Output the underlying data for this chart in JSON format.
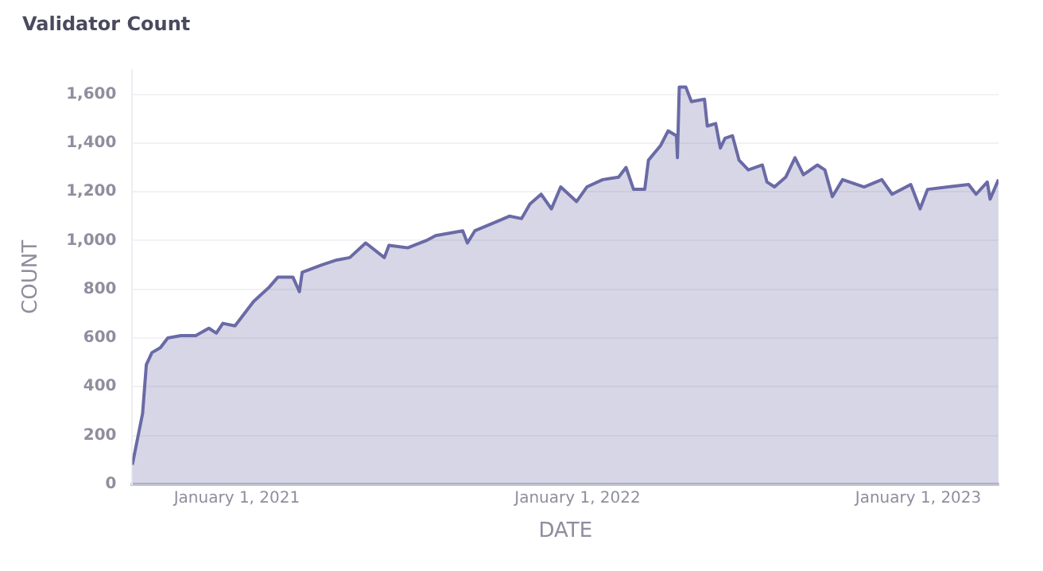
{
  "chart_data": {
    "type": "area",
    "title": "Validator Count",
    "xlabel": "DATE",
    "ylabel": "COUNT",
    "x": [
      "2020-09-11",
      "2020-09-22",
      "2020-09-26",
      "2020-10-02",
      "2020-10-11",
      "2020-10-19",
      "2020-11-02",
      "2020-11-18",
      "2020-12-02",
      "2020-12-10",
      "2020-12-17",
      "2020-12-30",
      "2021-01-19",
      "2021-02-05",
      "2021-02-14",
      "2021-03-02",
      "2021-03-09",
      "2021-03-12",
      "2021-04-02",
      "2021-04-18",
      "2021-05-02",
      "2021-05-19",
      "2021-06-08",
      "2021-06-13",
      "2021-07-03",
      "2021-07-23",
      "2021-08-02",
      "2021-08-31",
      "2021-09-05",
      "2021-09-13",
      "2021-10-08",
      "2021-10-20",
      "2021-11-02",
      "2021-11-11",
      "2021-11-23",
      "2021-12-04",
      "2021-12-14",
      "2021-12-31",
      "2022-01-11",
      "2022-01-28",
      "2022-02-14",
      "2022-02-22",
      "2022-03-02",
      "2022-03-14",
      "2022-03-18",
      "2022-03-31",
      "2022-04-08",
      "2022-04-17",
      "2022-04-18",
      "2022-04-20",
      "2022-04-27",
      "2022-05-03",
      "2022-05-17",
      "2022-05-20",
      "2022-05-29",
      "2022-06-03",
      "2022-06-08",
      "2022-06-16",
      "2022-06-23",
      "2022-07-03",
      "2022-07-18",
      "2022-07-23",
      "2022-07-31",
      "2022-08-12",
      "2022-08-22",
      "2022-08-31",
      "2022-09-15",
      "2022-09-23",
      "2022-10-01",
      "2022-10-12",
      "2022-11-04",
      "2022-11-23",
      "2022-12-04",
      "2022-12-24",
      "2023-01-03",
      "2023-01-11",
      "2023-02-02",
      "2023-02-24",
      "2023-03-04",
      "2023-03-16",
      "2023-03-19",
      "2023-03-28"
    ],
    "series": [
      {
        "color": "#6a6aa6",
        "values": [
          80,
          290,
          490,
          540,
          560,
          600,
          610,
          610,
          640,
          620,
          660,
          650,
          750,
          810,
          850,
          850,
          790,
          870,
          900,
          920,
          930,
          990,
          930,
          980,
          970,
          1000,
          1020,
          1040,
          990,
          1040,
          1080,
          1100,
          1090,
          1150,
          1190,
          1130,
          1220,
          1160,
          1220,
          1250,
          1260,
          1300,
          1210,
          1210,
          1330,
          1390,
          1450,
          1430,
          1340,
          1630,
          1630,
          1570,
          1580,
          1470,
          1480,
          1380,
          1420,
          1430,
          1330,
          1290,
          1310,
          1240,
          1220,
          1260,
          1340,
          1270,
          1310,
          1290,
          1180,
          1250,
          1220,
          1250,
          1190,
          1230,
          1130,
          1210,
          1220,
          1230,
          1190,
          1240,
          1170,
          1250
        ]
      }
    ],
    "xlim": [
      "2020-09-11",
      "2023-03-28"
    ],
    "xticks": [
      {
        "value": "2021-01-01",
        "label": "January 1, 2021"
      },
      {
        "value": "2022-01-01",
        "label": "January 1, 2022"
      },
      {
        "value": "2023-01-01",
        "label": "January 1, 2023"
      }
    ],
    "ylim": [
      0,
      1700
    ],
    "yticks": [
      0,
      200,
      400,
      600,
      800,
      {
        "value": 1000,
        "label": "1,000"
      },
      {
        "value": 1200,
        "label": "1,200"
      },
      {
        "value": 1400,
        "label": "1,400"
      },
      {
        "value": 1600,
        "label": "1,600"
      }
    ],
    "grid": "y",
    "legend": false
  }
}
